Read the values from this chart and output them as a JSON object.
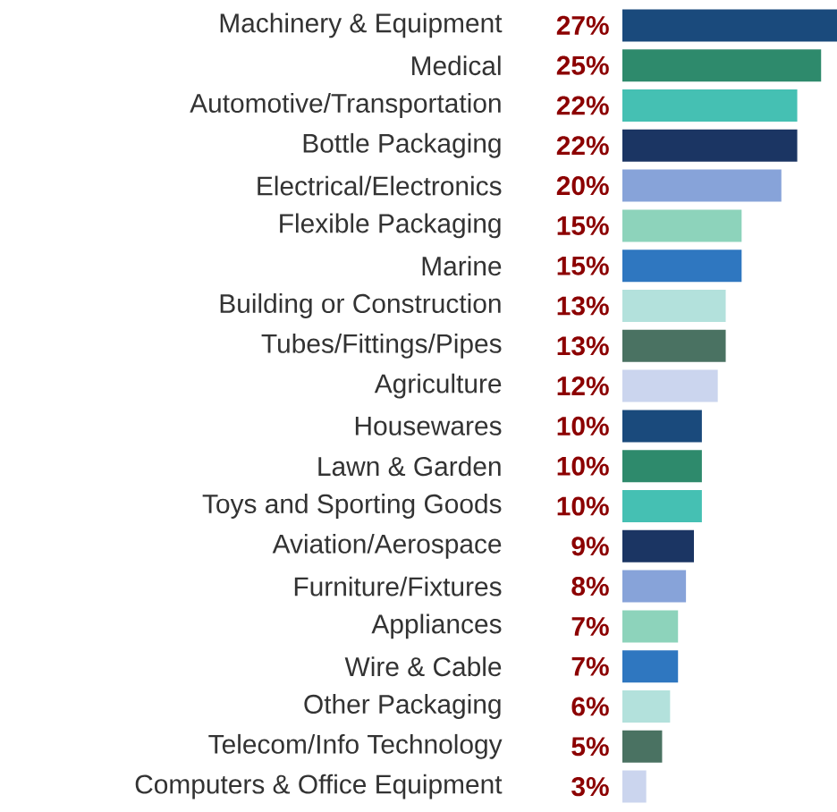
{
  "chart_data": {
    "type": "bar",
    "orientation": "horizontal",
    "categories": [
      "Machinery & Equipment",
      "Medical",
      "Automotive/Transportation",
      "Bottle Packaging",
      "Electrical/Electronics",
      "Flexible Packaging",
      "Marine",
      "Building or Construction",
      "Tubes/Fittings/Pipes",
      "Agriculture",
      "Housewares",
      "Lawn & Garden",
      "Toys and Sporting Goods",
      "Aviation/Aerospace",
      "Furniture/Fixtures",
      "Appliances",
      "Wire & Cable",
      "Other Packaging",
      "Telecom/Info Technology",
      "Computers & Office Equipment"
    ],
    "values": [
      27,
      25,
      22,
      22,
      20,
      15,
      15,
      13,
      13,
      12,
      10,
      10,
      10,
      9,
      8,
      7,
      7,
      6,
      5,
      3
    ],
    "value_labels": [
      "27%",
      "25%",
      "22%",
      "22%",
      "20%",
      "15%",
      "15%",
      "13%",
      "13%",
      "12%",
      "10%",
      "10%",
      "10%",
      "9%",
      "8%",
      "7%",
      "7%",
      "6%",
      "5%",
      "3%"
    ],
    "colors": [
      "#1a4a7c",
      "#2e8a6c",
      "#45c0b3",
      "#1b3563",
      "#87a3d9",
      "#8dd3bb",
      "#2f77c0",
      "#b3e1dc",
      "#4a7262",
      "#cbd5ee",
      "#1a4a7c",
      "#2e8a6c",
      "#45c0b3",
      "#1b3563",
      "#87a3d9",
      "#8dd3bb",
      "#2f77c0",
      "#b3e1dc",
      "#4a7262",
      "#cbd5ee"
    ]
  }
}
